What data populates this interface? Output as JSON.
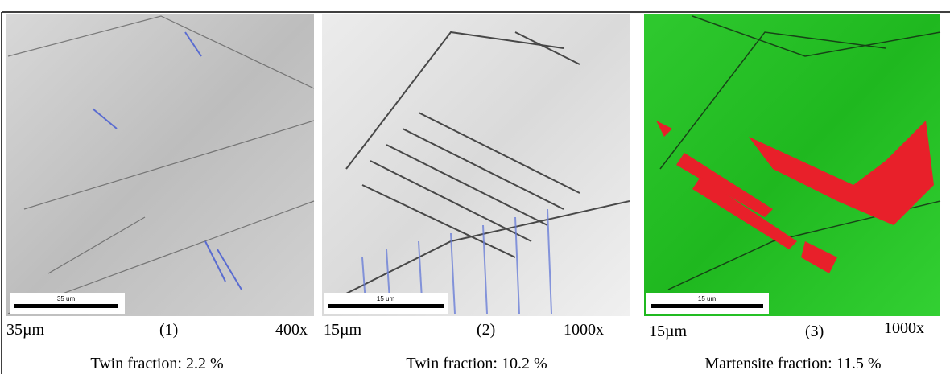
{
  "panels": [
    {
      "scale_bar_text": "35 um",
      "scale_label": "35µm",
      "index": "(1)",
      "magnification": "400x",
      "caption": "Twin fraction: 2.2 %"
    },
    {
      "scale_bar_text": "15 um",
      "scale_label": "15µm",
      "index": "(2)",
      "magnification": "1000x",
      "caption": "Twin fraction: 10.2 %"
    },
    {
      "scale_bar_text": "15 um",
      "scale_label": "15µm",
      "index": "(3)",
      "magnification": "1000x",
      "caption": "Martensite fraction: 11.5 %"
    }
  ]
}
